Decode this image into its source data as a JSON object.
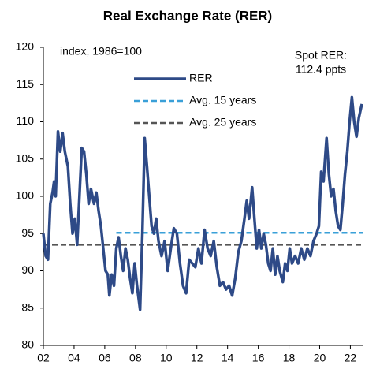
{
  "chart_data": {
    "type": "line",
    "title": "Real Exchange Rate (RER)",
    "note": "index, 1986=100",
    "annotation": [
      "Spot RER:",
      "112.4 ppts"
    ],
    "annotation_color": "#2f5597",
    "xlim": [
      2002,
      2022.8
    ],
    "xticks": [
      {
        "value": 2002,
        "label": "02"
      },
      {
        "value": 2004,
        "label": "04"
      },
      {
        "value": 2006,
        "label": "06"
      },
      {
        "value": 2008,
        "label": "08"
      },
      {
        "value": 2010,
        "label": "10"
      },
      {
        "value": 2012,
        "label": "12"
      },
      {
        "value": 2014,
        "label": "14"
      },
      {
        "value": 2016,
        "label": "16"
      },
      {
        "value": 2018,
        "label": "18"
      },
      {
        "value": 2020,
        "label": "20"
      },
      {
        "value": 2022,
        "label": "22"
      }
    ],
    "ylim": [
      80,
      120
    ],
    "yticks": [
      80,
      85,
      90,
      95,
      100,
      105,
      110,
      115,
      120
    ],
    "series": [
      {
        "name": "RER",
        "color": "#2e4a87",
        "width": 3.5,
        "dash": false,
        "x": [
          2002.0,
          2002.15,
          2002.3,
          2002.45,
          2002.6,
          2002.7,
          2002.8,
          2002.95,
          2003.1,
          2003.25,
          2003.4,
          2003.6,
          2003.75,
          2003.9,
          2004.05,
          2004.2,
          2004.35,
          2004.5,
          2004.65,
          2004.8,
          2004.95,
          2005.1,
          2005.3,
          2005.45,
          2005.6,
          2005.75,
          2005.9,
          2006.05,
          2006.2,
          2006.3,
          2006.45,
          2006.6,
          2006.75,
          2006.9,
          2007.05,
          2007.2,
          2007.35,
          2007.5,
          2007.65,
          2007.8,
          2007.95,
          2008.1,
          2008.3,
          2008.45,
          2008.6,
          2008.75,
          2008.9,
          2009.05,
          2009.2,
          2009.35,
          2009.5,
          2009.7,
          2009.9,
          2010.1,
          2010.3,
          2010.5,
          2010.7,
          2010.9,
          2011.1,
          2011.3,
          2011.5,
          2011.7,
          2011.9,
          2012.1,
          2012.3,
          2012.5,
          2012.7,
          2012.9,
          2013.1,
          2013.3,
          2013.5,
          2013.7,
          2013.9,
          2014.1,
          2014.3,
          2014.5,
          2014.7,
          2014.9,
          2015.1,
          2015.25,
          2015.4,
          2015.6,
          2015.75,
          2015.9,
          2016.05,
          2016.2,
          2016.35,
          2016.5,
          2016.65,
          2016.8,
          2016.95,
          2017.1,
          2017.25,
          2017.4,
          2017.6,
          2017.75,
          2017.9,
          2018.05,
          2018.2,
          2018.4,
          2018.6,
          2018.8,
          2019.0,
          2019.2,
          2019.4,
          2019.6,
          2019.8,
          2019.95,
          2020.1,
          2020.25,
          2020.45,
          2020.6,
          2020.75,
          2020.9,
          2021.05,
          2021.2,
          2021.35,
          2021.5,
          2021.65,
          2021.8,
          2021.95,
          2022.1,
          2022.25,
          2022.4,
          2022.55,
          2022.75
        ],
        "values": [
          95,
          92,
          91.5,
          99,
          100.5,
          102,
          100,
          108.7,
          106,
          108.5,
          106,
          104,
          99,
          95,
          97,
          93.5,
          100,
          106.5,
          106,
          103,
          99,
          101,
          99,
          100.5,
          98,
          96,
          93,
          90,
          89.5,
          86.7,
          89.5,
          88,
          93,
          94.5,
          92,
          90,
          93,
          91.5,
          89,
          87,
          91,
          88,
          84.8,
          95,
          107.8,
          104,
          100,
          96,
          95,
          97,
          94,
          92,
          94,
          90,
          93,
          95.7,
          95,
          91,
          88,
          87,
          91.5,
          91,
          90.5,
          93,
          91,
          95.5,
          93,
          92,
          94,
          90.5,
          88,
          88.5,
          87.5,
          88,
          86.7,
          89,
          92.5,
          94,
          97,
          99.4,
          97,
          101.2,
          97,
          93,
          95.5,
          93,
          95,
          93.5,
          91,
          90,
          93,
          89.5,
          92,
          90,
          88.5,
          91,
          90,
          93,
          91,
          92,
          91,
          93,
          91.5,
          93,
          92,
          94,
          95,
          96,
          103.3,
          102,
          107.8,
          103,
          100,
          101,
          98,
          96,
          95.5,
          99,
          103,
          106,
          110,
          113.3,
          110,
          108,
          110.5,
          112.4
        ]
      },
      {
        "name": "Avg. 15 years",
        "color": "#3aa0d8",
        "width": 2.5,
        "dash": true,
        "x": [
          2006.75,
          2022.8
        ],
        "values": [
          95.1,
          95.1
        ]
      },
      {
        "name": "Avg. 25 years",
        "color": "#555555",
        "width": 2.5,
        "dash": true,
        "x": [
          2002,
          2022.8
        ],
        "values": [
          93.5,
          93.5
        ]
      }
    ]
  }
}
